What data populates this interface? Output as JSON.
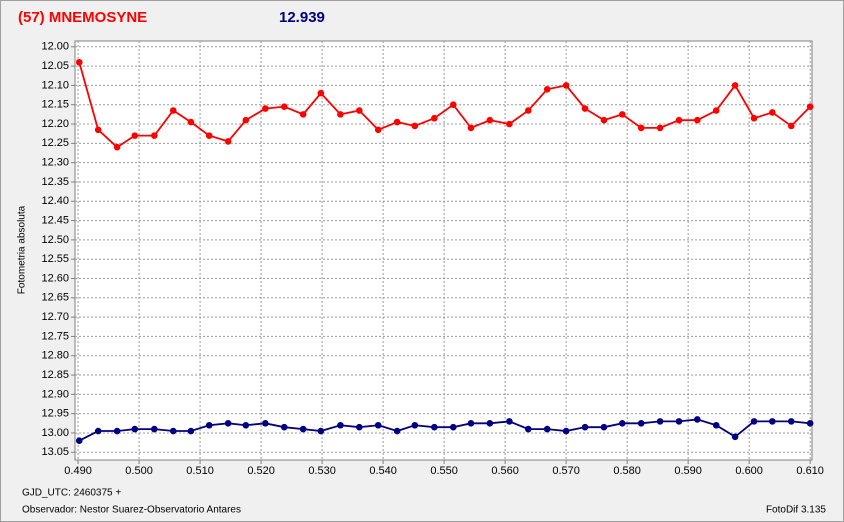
{
  "chart_data": {
    "type": "line",
    "title": "(57) MNEMOSYNE",
    "subtitle": "12.939",
    "y_label": "Fotometria absoluta",
    "x_label": "GJD_UTC: 2460375 +",
    "observer": "Observador: Nestor Suarez-Observatorio Antares",
    "software": "FotoDif 3.135",
    "grid": true,
    "y_inverted": true,
    "xlim": [
      0.4895,
      0.6103
    ],
    "ylim": [
      11.985,
      13.07
    ],
    "xticks": [
      {
        "value": 0.49,
        "label": "0.490"
      },
      {
        "value": 0.5,
        "label": "0.500"
      },
      {
        "value": 0.51,
        "label": "0.510"
      },
      {
        "value": 0.52,
        "label": "0.520"
      },
      {
        "value": 0.53,
        "label": "0.530"
      },
      {
        "value": 0.54,
        "label": "0.540"
      },
      {
        "value": 0.55,
        "label": "0.550"
      },
      {
        "value": 0.56,
        "label": "0.560"
      },
      {
        "value": 0.57,
        "label": "0.570"
      },
      {
        "value": 0.58,
        "label": "0.580"
      },
      {
        "value": 0.59,
        "label": "0.590"
      },
      {
        "value": 0.6,
        "label": "0.600"
      },
      {
        "value": 0.61,
        "label": "0.610"
      }
    ],
    "yticks": [
      {
        "value": 12.0,
        "label": "12.00"
      },
      {
        "value": 12.05,
        "label": "12.05"
      },
      {
        "value": 12.1,
        "label": "12.10"
      },
      {
        "value": 12.15,
        "label": "12.15"
      },
      {
        "value": 12.2,
        "label": "12.20"
      },
      {
        "value": 12.25,
        "label": "12.25"
      },
      {
        "value": 12.3,
        "label": "12.30"
      },
      {
        "value": 12.35,
        "label": "12.35"
      },
      {
        "value": 12.4,
        "label": "12.40"
      },
      {
        "value": 12.45,
        "label": "12.45"
      },
      {
        "value": 12.5,
        "label": "12.50"
      },
      {
        "value": 12.55,
        "label": "12.55"
      },
      {
        "value": 12.6,
        "label": "12.60"
      },
      {
        "value": 12.65,
        "label": "12.65"
      },
      {
        "value": 12.7,
        "label": "12.70"
      },
      {
        "value": 12.75,
        "label": "12.75"
      },
      {
        "value": 12.8,
        "label": "12.80"
      },
      {
        "value": 12.85,
        "label": "12.85"
      },
      {
        "value": 12.9,
        "label": "12.90"
      },
      {
        "value": 12.95,
        "label": "12.95"
      },
      {
        "value": 13.0,
        "label": "13.00"
      },
      {
        "value": 13.05,
        "label": "13.05"
      }
    ],
    "x": [
      0.4902,
      0.4933,
      0.4964,
      0.4993,
      0.5025,
      0.5056,
      0.5085,
      0.5115,
      0.5146,
      0.5175,
      0.5207,
      0.5238,
      0.5269,
      0.5298,
      0.533,
      0.5361,
      0.5392,
      0.5423,
      0.5452,
      0.5484,
      0.5515,
      0.5544,
      0.5575,
      0.5607,
      0.5638,
      0.5669,
      0.57,
      0.5731,
      0.5762,
      0.5792,
      0.5823,
      0.5854,
      0.5885,
      0.5915,
      0.5946,
      0.5977,
      0.6008,
      0.6038,
      0.6069,
      0.61
    ],
    "series": [
      {
        "color": "#ff0000",
        "values": [
          12.04,
          12.215,
          12.26,
          12.23,
          12.23,
          12.165,
          12.195,
          12.23,
          12.245,
          12.19,
          12.16,
          12.155,
          12.175,
          12.12,
          12.175,
          12.165,
          12.215,
          12.195,
          12.205,
          12.185,
          12.15,
          12.21,
          12.19,
          12.2,
          12.165,
          12.11,
          12.1,
          12.16,
          12.19,
          12.175,
          12.21,
          12.21,
          12.19,
          12.19,
          12.165,
          12.1,
          12.185,
          12.17,
          12.205,
          12.155
        ]
      },
      {
        "color": "#000080",
        "values": [
          13.02,
          12.995,
          12.995,
          12.99,
          12.99,
          12.995,
          12.995,
          12.98,
          12.975,
          12.98,
          12.975,
          12.985,
          12.99,
          12.995,
          12.98,
          12.985,
          12.98,
          12.995,
          12.98,
          12.985,
          12.985,
          12.975,
          12.975,
          12.97,
          12.99,
          12.99,
          12.995,
          12.985,
          12.985,
          12.975,
          12.975,
          12.97,
          12.97,
          12.965,
          12.98,
          13.01,
          12.97,
          12.97,
          12.97,
          12.975
        ]
      }
    ]
  }
}
